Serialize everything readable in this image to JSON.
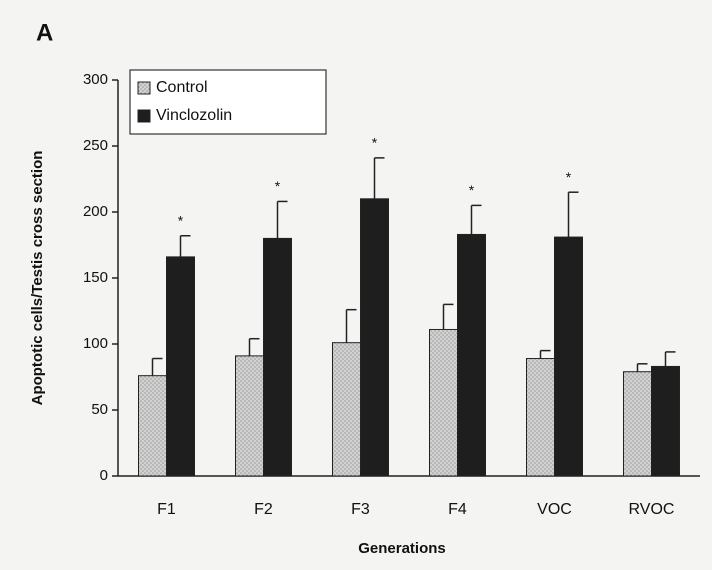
{
  "chart_data": {
    "type": "bar",
    "panel_label": "A",
    "ylabel": "Apoptotic cells/Testis cross section",
    "xlabel": "Generations",
    "categories": [
      "F1",
      "F2",
      "F3",
      "F4",
      "VOC",
      "RVOC"
    ],
    "series": [
      {
        "name": "Control",
        "color": "#c8c8c8",
        "values": [
          76,
          91,
          101,
          111,
          89,
          79
        ],
        "errors": [
          13,
          13,
          25,
          19,
          6,
          6
        ]
      },
      {
        "name": "Vinclozolin",
        "color": "#1e1e1e",
        "values": [
          166,
          180,
          210,
          183,
          181,
          83
        ],
        "errors": [
          16,
          28,
          31,
          22,
          34,
          11
        ],
        "annotations": [
          "*",
          "*",
          "*",
          "*",
          "*",
          null
        ]
      }
    ],
    "ylim": [
      0,
      300
    ],
    "yticks": [
      0,
      50,
      100,
      150,
      200,
      250,
      300
    ],
    "legend": "upper-left"
  }
}
